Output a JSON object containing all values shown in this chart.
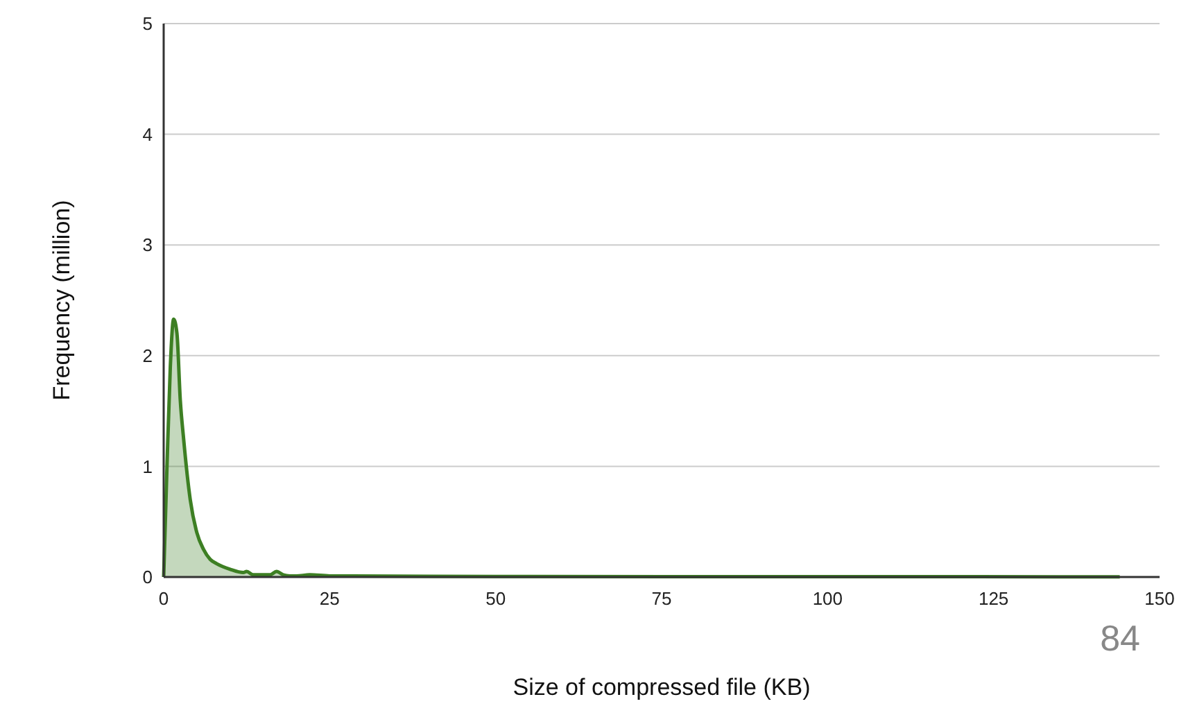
{
  "chart_data": {
    "type": "area",
    "xlabel": "Size of compressed file (KB)",
    "ylabel": "Frequency (million)",
    "series": [
      {
        "color": "#3d7f23",
        "x": [
          0,
          0.5,
          1,
          1.5,
          2,
          2.5,
          3,
          4,
          5,
          6,
          7,
          8,
          10,
          12,
          12.5,
          13.5,
          15,
          16,
          17,
          18,
          19,
          20,
          22,
          25,
          50,
          100,
          144
        ],
        "values": [
          0,
          1.0,
          1.9,
          2.33,
          2.2,
          1.6,
          1.25,
          0.7,
          0.4,
          0.25,
          0.16,
          0.12,
          0.07,
          0.04,
          0.05,
          0.02,
          0.02,
          0.02,
          0.05,
          0.02,
          0.01,
          0.01,
          0.02,
          0.01,
          0.005,
          0.003,
          0.002
        ]
      }
    ],
    "xlim": [
      0,
      150
    ],
    "xticks": [
      0,
      25,
      50,
      75,
      100,
      125,
      150
    ],
    "ylim": [
      0,
      5
    ],
    "yticks": [
      0,
      1,
      2,
      3,
      4,
      5
    ],
    "grid": "y",
    "annotations": [
      "84"
    ]
  }
}
